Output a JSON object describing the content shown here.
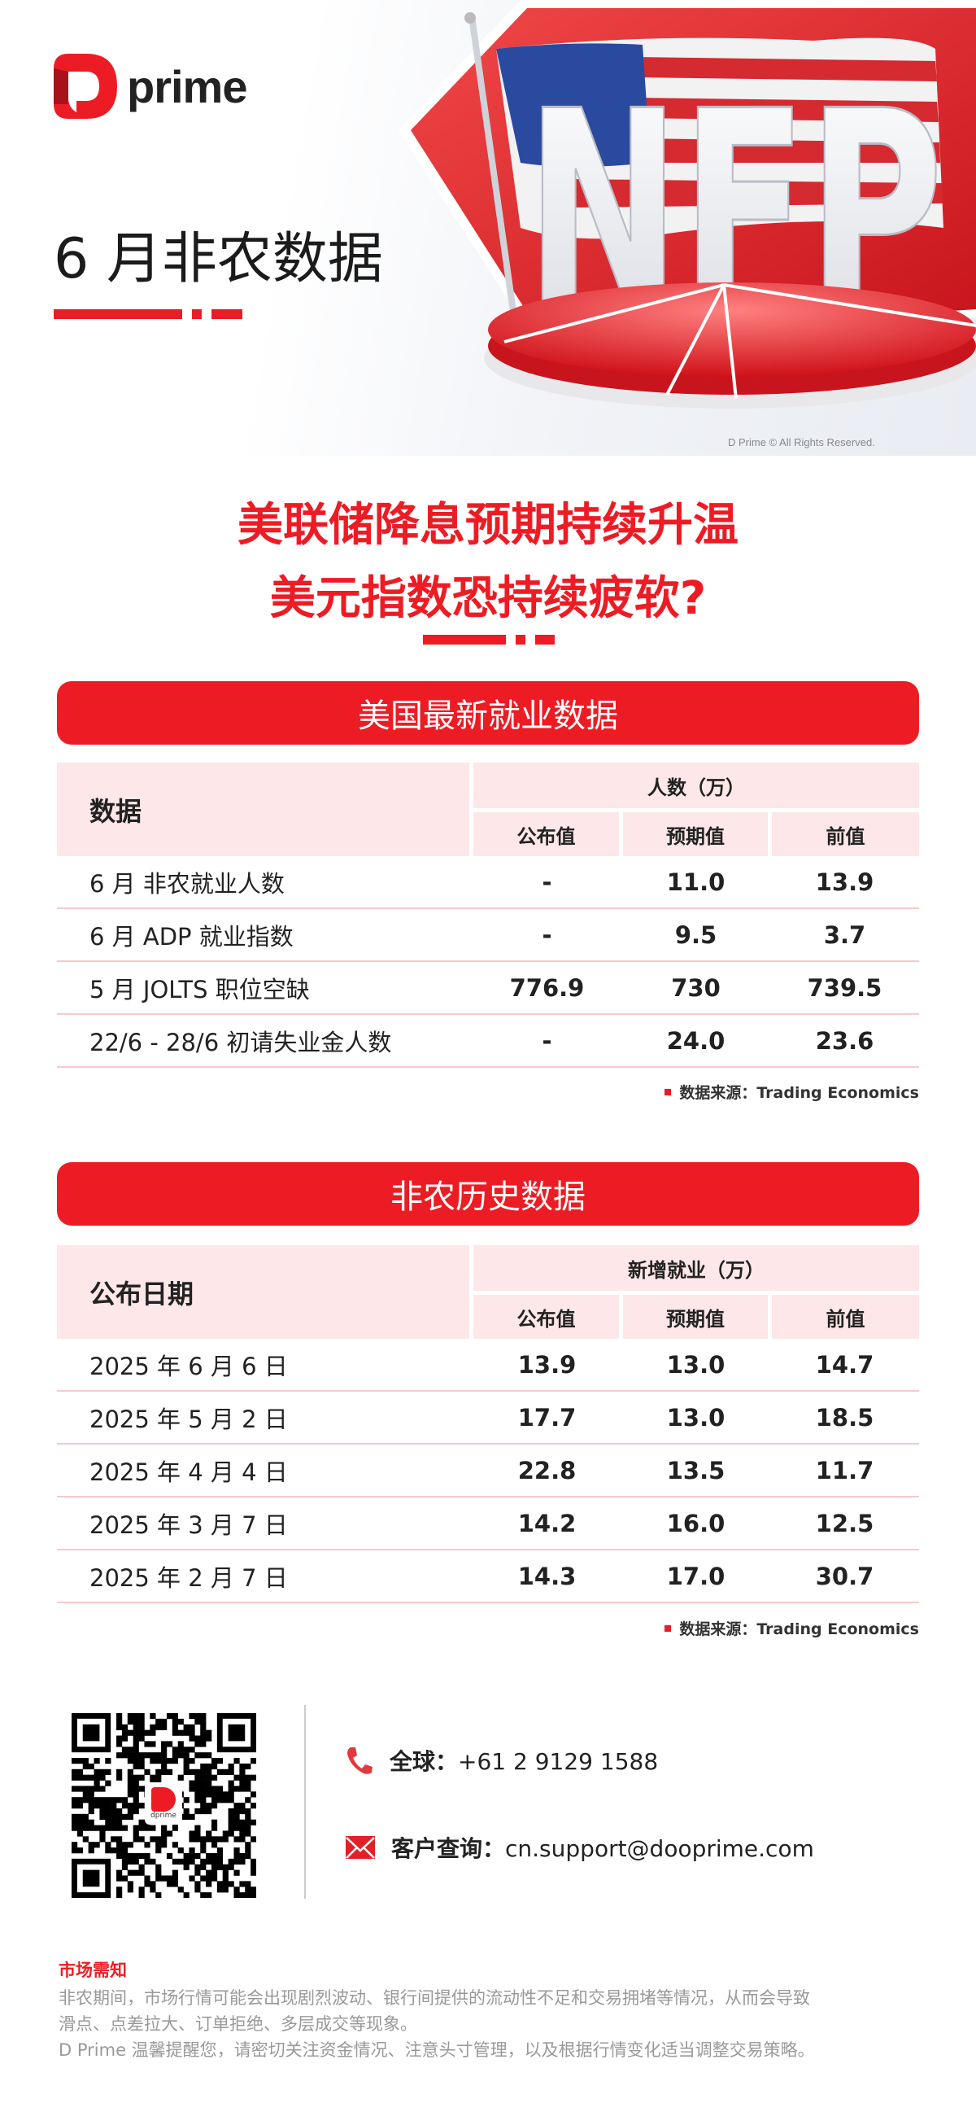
{
  "brand": {
    "logo_text": "prime",
    "accent": "#ed1c24"
  },
  "hero": {
    "title": "6 月非农数据",
    "image_letters": "NFP",
    "copyright": "D Prime © All Rights Reserved."
  },
  "headline": {
    "line1": "美联储降息预期持续升温",
    "line2": "美元指数恐持续疲软?"
  },
  "section1": {
    "banner": "美国最新就业数据",
    "col_label": "数据",
    "group_label": "人数（万）",
    "cols": [
      "公布值",
      "预期值",
      "前值"
    ],
    "rows": [
      {
        "label": "6 月 非农就业人数",
        "values": [
          "-",
          "11.0",
          "13.9"
        ]
      },
      {
        "label": "6 月 ADP 就业指数",
        "values": [
          "-",
          "9.5",
          "3.7"
        ]
      },
      {
        "label": "5 月 JOLTS 职位空缺",
        "values": [
          "776.9",
          "730",
          "739.5"
        ]
      },
      {
        "label": "22/6 - 28/6 初请失业金人数",
        "values": [
          "-",
          "24.0",
          "23.6"
        ]
      }
    ],
    "source": "数据来源：Trading Economics"
  },
  "section2": {
    "banner": "非农历史数据",
    "col_label": "公布日期",
    "group_label": "新增就业（万）",
    "cols": [
      "公布值",
      "预期值",
      "前值"
    ],
    "rows": [
      {
        "label": "2025 年 6 月 6 日",
        "values": [
          "13.9",
          "13.0",
          "14.7"
        ]
      },
      {
        "label": "2025 年 5 月 2 日",
        "values": [
          "17.7",
          "13.0",
          "18.5"
        ]
      },
      {
        "label": "2025 年 4 月 4 日",
        "values": [
          "22.8",
          "13.5",
          "11.7"
        ]
      },
      {
        "label": "2025 年 3 月 7 日",
        "values": [
          "14.2",
          "16.0",
          "12.5"
        ]
      },
      {
        "label": "2025 年 2 月 7 日",
        "values": [
          "14.3",
          "17.0",
          "30.7"
        ]
      }
    ],
    "source": "数据来源：Trading Economics"
  },
  "contact": {
    "qr_logo_text": "dprime",
    "phone_label": "全球：",
    "phone": "+61 2 9129 1588",
    "email_label": "客户查询：",
    "email": "cn.support@dooprime.com"
  },
  "footer": {
    "title": "市场需知",
    "lines": [
      "非农期间，市场行情可能会出现剧烈波动、银行间提供的流动性不足和交易拥堵等情况，从而会导致",
      "滑点、点差拉大、订单拒绝、多层成交等现象。",
      "D Prime 温馨提醒您，请密切关注资金情况、注意头寸管理，以及根据行情变化适当调整交易策略。"
    ]
  }
}
